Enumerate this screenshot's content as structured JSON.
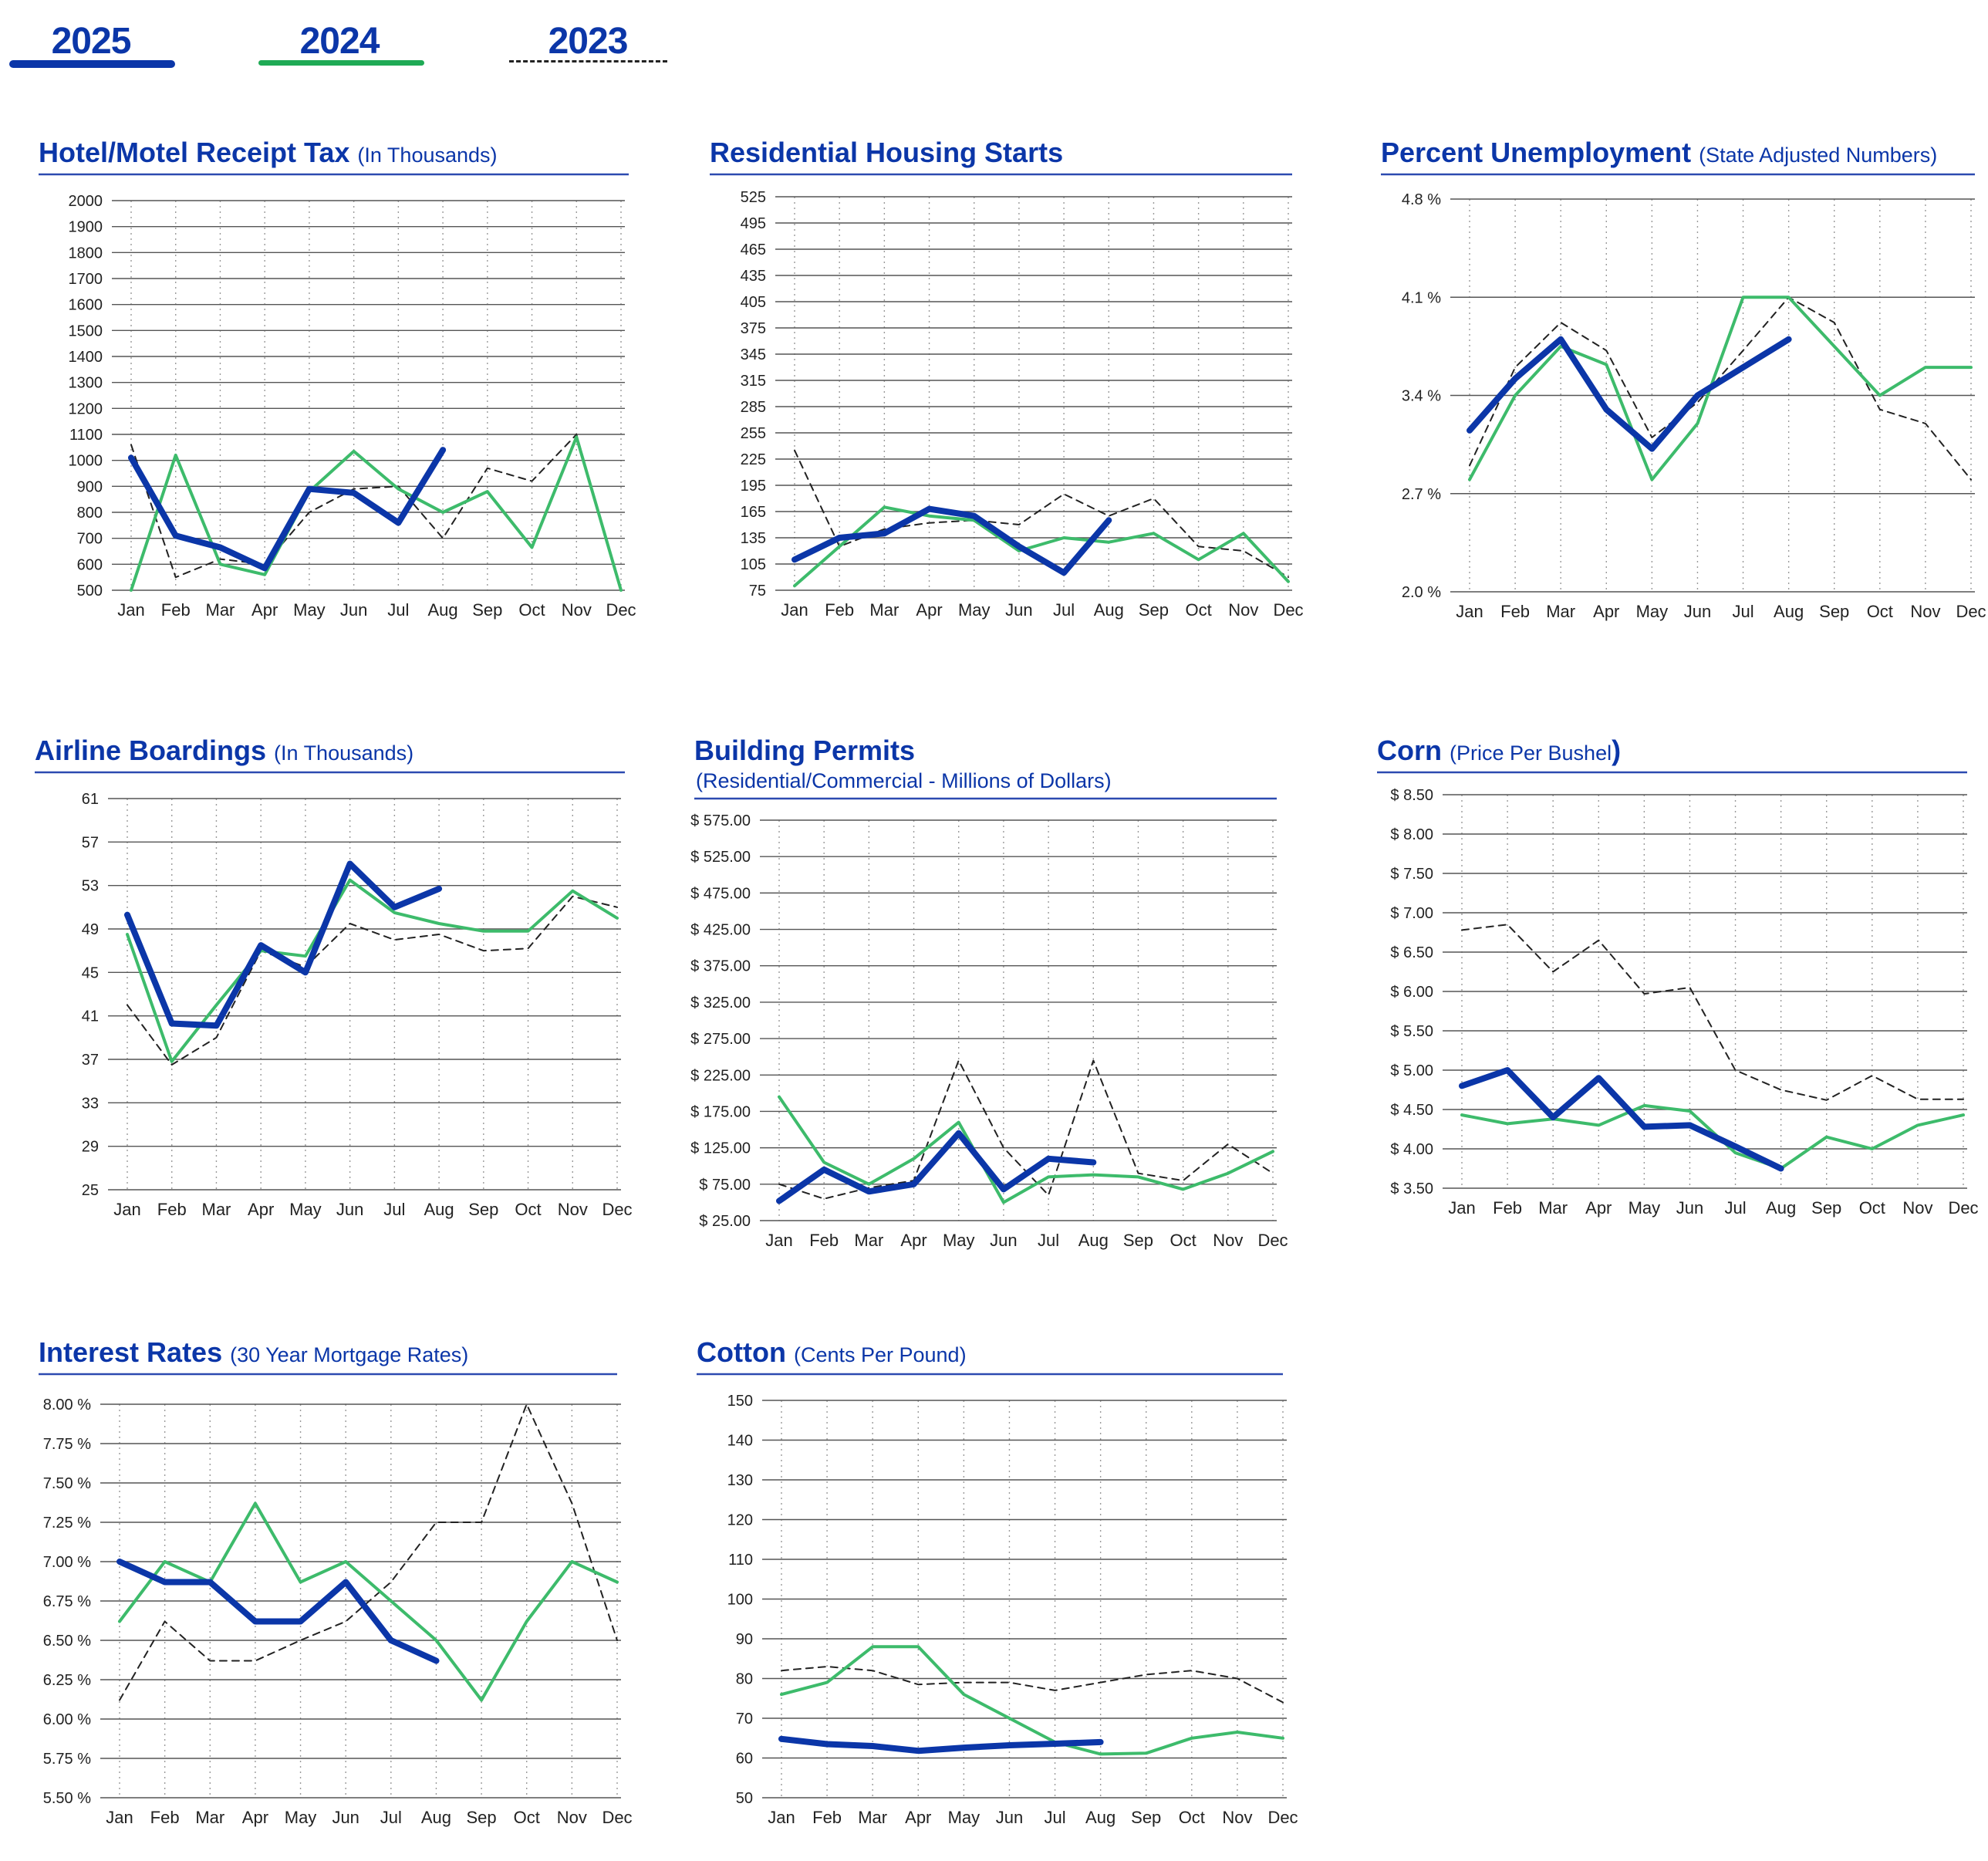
{
  "legend": [
    {
      "label": "2025",
      "color": "#0b36a8",
      "style": "thick"
    },
    {
      "label": "2024",
      "color": "#1faa55",
      "style": "solid"
    },
    {
      "label": "2023",
      "color": "#222222",
      "style": "dashed"
    }
  ],
  "colors": {
    "y2025": "#0b36a8",
    "y2024": "#3dbb6b",
    "y2023": "#222222",
    "title": "#0b36a8",
    "rule": "#2c4ab0"
  },
  "months": [
    "Jan",
    "Feb",
    "Mar",
    "Apr",
    "May",
    "Jun",
    "Jul",
    "Aug",
    "Sep",
    "Oct",
    "Nov",
    "Dec"
  ],
  "chart_data": [
    {
      "type": "line",
      "title": "Hotel/Motel Receipt Tax",
      "subtitle": "(In Thousands)",
      "subtitle_inline": true,
      "ylim": [
        500,
        2000
      ],
      "yticks": [
        "500",
        "600",
        "700",
        "800",
        "900",
        "1000",
        "1100",
        "1200",
        "1300",
        "1400",
        "1500",
        "1600",
        "1700",
        "1800",
        "1900",
        "2000"
      ],
      "grid": true,
      "series": [
        {
          "name": "2023",
          "values": [
            1060,
            550,
            620,
            600,
            800,
            890,
            900,
            700,
            970,
            920,
            1100,
            500
          ]
        },
        {
          "name": "2024",
          "values": [
            500,
            1020,
            600,
            560,
            880,
            1035,
            890,
            800,
            880,
            665,
            1090,
            500
          ]
        },
        {
          "name": "2025",
          "values": [
            1010,
            710,
            665,
            585,
            890,
            875,
            760,
            1040
          ]
        }
      ]
    },
    {
      "type": "line",
      "title": "Residential Housing Starts",
      "subtitle": "",
      "subtitle_inline": true,
      "ylim": [
        75,
        525
      ],
      "yticks": [
        "75",
        "105",
        "135",
        "165",
        "195",
        "225",
        "255",
        "285",
        "315",
        "345",
        "375",
        "405",
        "435",
        "465",
        "495",
        "525"
      ],
      "grid": true,
      "series": [
        {
          "name": "2023",
          "values": [
            235,
            125,
            145,
            152,
            155,
            150,
            185,
            160,
            180,
            125,
            120,
            90
          ]
        },
        {
          "name": "2024",
          "values": [
            80,
            125,
            170,
            160,
            155,
            120,
            135,
            130,
            140,
            110,
            140,
            85
          ]
        },
        {
          "name": "2025",
          "values": [
            110,
            135,
            140,
            168,
            160,
            125,
            95,
            155
          ]
        }
      ]
    },
    {
      "type": "line",
      "title": "Percent Unemployment",
      "subtitle": "(State Adjusted Numbers)",
      "subtitle_inline": true,
      "ylim": [
        2.0,
        4.8
      ],
      "yticks": [
        "2.0 %",
        "2.7 %",
        "3.4 %",
        "4.1 %",
        "4.8 %"
      ],
      "grid": true,
      "series": [
        {
          "name": "2023",
          "values": [
            2.9,
            3.6,
            3.92,
            3.72,
            3.1,
            3.35,
            3.72,
            4.1,
            3.92,
            3.3,
            3.2,
            2.8
          ]
        },
        {
          "name": "2024",
          "values": [
            2.8,
            3.4,
            3.75,
            3.62,
            2.8,
            3.2,
            4.1,
            4.1,
            3.75,
            3.4,
            3.6,
            3.6
          ]
        },
        {
          "name": "2025",
          "values": [
            3.15,
            3.52,
            3.8,
            3.3,
            3.02,
            3.4,
            3.6,
            3.8
          ]
        }
      ]
    },
    {
      "type": "line",
      "title": "Airline Boardings",
      "subtitle": "(In Thousands)",
      "subtitle_inline": true,
      "ylim": [
        25,
        61
      ],
      "yticks": [
        "25",
        "29",
        "33",
        "37",
        "41",
        "45",
        "49",
        "53",
        "57",
        "61"
      ],
      "grid": true,
      "series": [
        {
          "name": "2023",
          "values": [
            42,
            36.5,
            39,
            47,
            45.5,
            49.5,
            48,
            48.5,
            47,
            47.2,
            52,
            51
          ]
        },
        {
          "name": "2024",
          "values": [
            48.5,
            36.8,
            42,
            47,
            46.5,
            53.5,
            50.5,
            49.5,
            48.8,
            48.8,
            52.5,
            50
          ]
        },
        {
          "name": "2025",
          "values": [
            50.3,
            40.3,
            40.1,
            47.5,
            45,
            55,
            51,
            52.7
          ]
        }
      ]
    },
    {
      "type": "line",
      "title": "Building Permits",
      "subtitle": "(Residential/Commercial - Millions of Dollars)",
      "subtitle_inline": false,
      "ylim": [
        25,
        575
      ],
      "yticks": [
        "$  25.00",
        "$  75.00",
        "$ 125.00",
        "$ 175.00",
        "$ 225.00",
        "$ 275.00",
        "$ 325.00",
        "$ 375.00",
        "$ 425.00",
        "$ 475.00",
        "$ 525.00",
        "$ 575.00"
      ],
      "grid": true,
      "series": [
        {
          "name": "2023",
          "values": [
            75,
            55,
            70,
            80,
            245,
            125,
            60,
            245,
            90,
            80,
            130,
            90
          ]
        },
        {
          "name": "2024",
          "values": [
            195,
            105,
            75,
            110,
            160,
            50,
            85,
            88,
            85,
            68,
            90,
            120
          ]
        },
        {
          "name": "2025",
          "values": [
            52,
            95,
            65,
            75,
            145,
            68,
            110,
            105
          ]
        }
      ]
    },
    {
      "type": "line",
      "title": "Corn",
      "subtitle": "(Price Per Bushel",
      "subtitle_tail": ")",
      "subtitle_inline": true,
      "ylim": [
        3.5,
        8.5
      ],
      "yticks": [
        "$ 3.50",
        "$ 4.00",
        "$ 4.50",
        "$ 5.00",
        "$ 5.50",
        "$ 6.00",
        "$ 6.50",
        "$ 7.00",
        "$ 7.50",
        "$ 8.00",
        "$ 8.50"
      ],
      "grid": true,
      "series": [
        {
          "name": "2023",
          "values": [
            6.78,
            6.85,
            6.25,
            6.65,
            5.97,
            6.05,
            5.0,
            4.75,
            4.62,
            4.93,
            4.63,
            4.63
          ]
        },
        {
          "name": "2024",
          "values": [
            4.43,
            4.32,
            4.38,
            4.3,
            4.55,
            4.48,
            3.95,
            3.75,
            4.15,
            4.0,
            4.3,
            4.43
          ]
        },
        {
          "name": "2025",
          "values": [
            4.8,
            5.0,
            4.4,
            4.9,
            4.28,
            4.3,
            4.03,
            3.75
          ]
        }
      ]
    },
    {
      "type": "line",
      "title": "Interest Rates",
      "subtitle": "(30 Year Mortgage Rates)",
      "subtitle_inline": true,
      "ylim": [
        5.5,
        8.0
      ],
      "yticks": [
        "5.50 %",
        "5.75 %",
        "6.00 %",
        "6.25 %",
        "6.50 %",
        "6.75 %",
        "7.00 %",
        "7.25 %",
        "7.50 %",
        "7.75 %",
        "8.00 %"
      ],
      "grid": true,
      "series": [
        {
          "name": "2023",
          "values": [
            6.12,
            6.62,
            6.37,
            6.37,
            6.5,
            6.62,
            6.87,
            7.25,
            7.25,
            8.0,
            7.37,
            6.5
          ]
        },
        {
          "name": "2024",
          "values": [
            6.62,
            7.0,
            6.87,
            7.37,
            6.87,
            7.0,
            6.75,
            6.5,
            6.12,
            6.62,
            7.0,
            6.87
          ]
        },
        {
          "name": "2025",
          "values": [
            7.0,
            6.87,
            6.87,
            6.62,
            6.62,
            6.87,
            6.5,
            6.37
          ]
        }
      ]
    },
    {
      "type": "line",
      "title": "Cotton",
      "subtitle": "(Cents Per Pound)",
      "subtitle_inline": true,
      "ylim": [
        50,
        150
      ],
      "yticks": [
        "50",
        "60",
        "70",
        "80",
        "90",
        "100",
        "110",
        "120",
        "130",
        "140",
        "150"
      ],
      "grid": true,
      "series": [
        {
          "name": "2023",
          "values": [
            82,
            83,
            82,
            78.5,
            79,
            79,
            77,
            79,
            81,
            82,
            80,
            74
          ]
        },
        {
          "name": "2024",
          "values": [
            76,
            79,
            88,
            88,
            76,
            70,
            64,
            61,
            61.2,
            65,
            66.5,
            65
          ]
        },
        {
          "name": "2025",
          "values": [
            64.8,
            63.5,
            63,
            61.8,
            62.6,
            63.2,
            63.6,
            64
          ]
        }
      ]
    }
  ]
}
